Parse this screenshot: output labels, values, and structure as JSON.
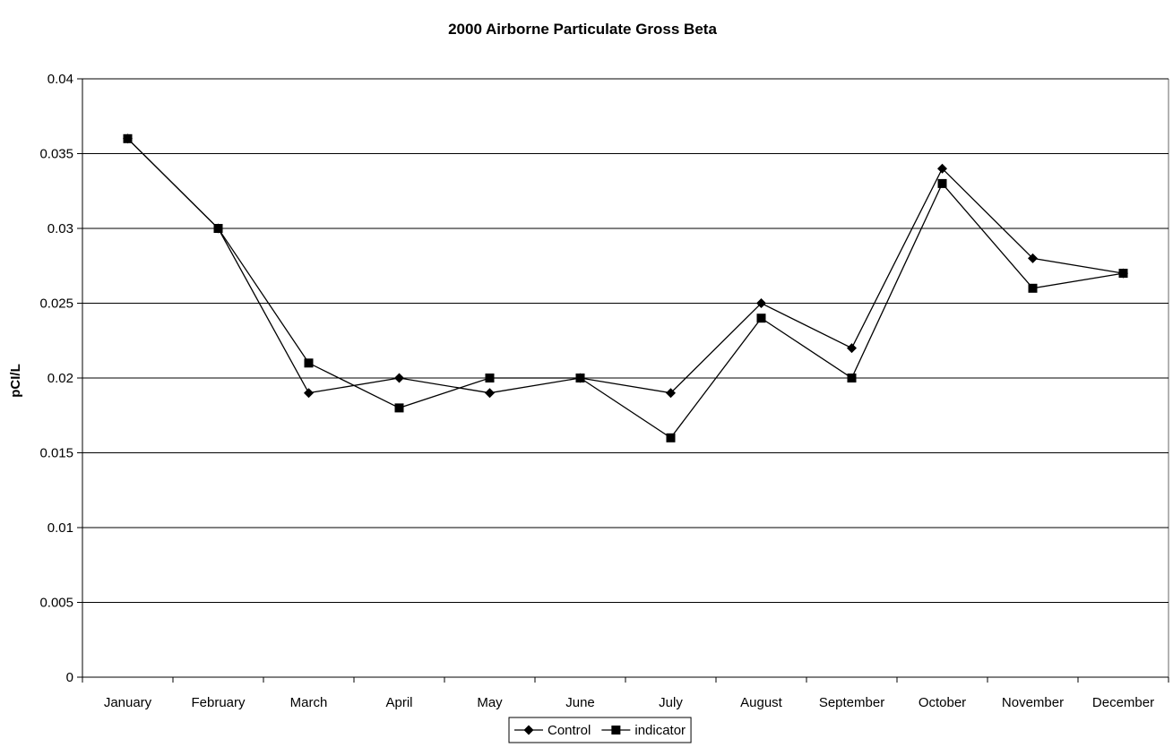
{
  "chart_data": {
    "type": "line",
    "title": "2000 Airborne Particulate Gross Beta",
    "xlabel": "",
    "ylabel": "pCI/L",
    "categories": [
      "January",
      "February",
      "March",
      "April",
      "May",
      "June",
      "July",
      "August",
      "September",
      "October",
      "November",
      "December"
    ],
    "ylim": [
      0,
      0.04
    ],
    "yticks": [
      "0",
      "0.005",
      "0.01",
      "0.015",
      "0.02",
      "0.025",
      "0.03",
      "0.035",
      "0.04"
    ],
    "grid": true,
    "legend_position": "bottom",
    "series": [
      {
        "name": "Control",
        "marker": "diamond",
        "values": [
          0.036,
          0.03,
          0.019,
          0.02,
          0.019,
          0.02,
          0.019,
          0.025,
          0.022,
          0.034,
          0.028,
          0.027
        ]
      },
      {
        "name": "indicator",
        "marker": "square",
        "values": [
          0.036,
          0.03,
          0.021,
          0.018,
          0.02,
          0.02,
          0.016,
          0.024,
          0.02,
          0.033,
          0.026,
          0.027
        ]
      }
    ],
    "colors": {
      "line": "#000000",
      "grid": "#000000",
      "background": "#ffffff"
    }
  }
}
